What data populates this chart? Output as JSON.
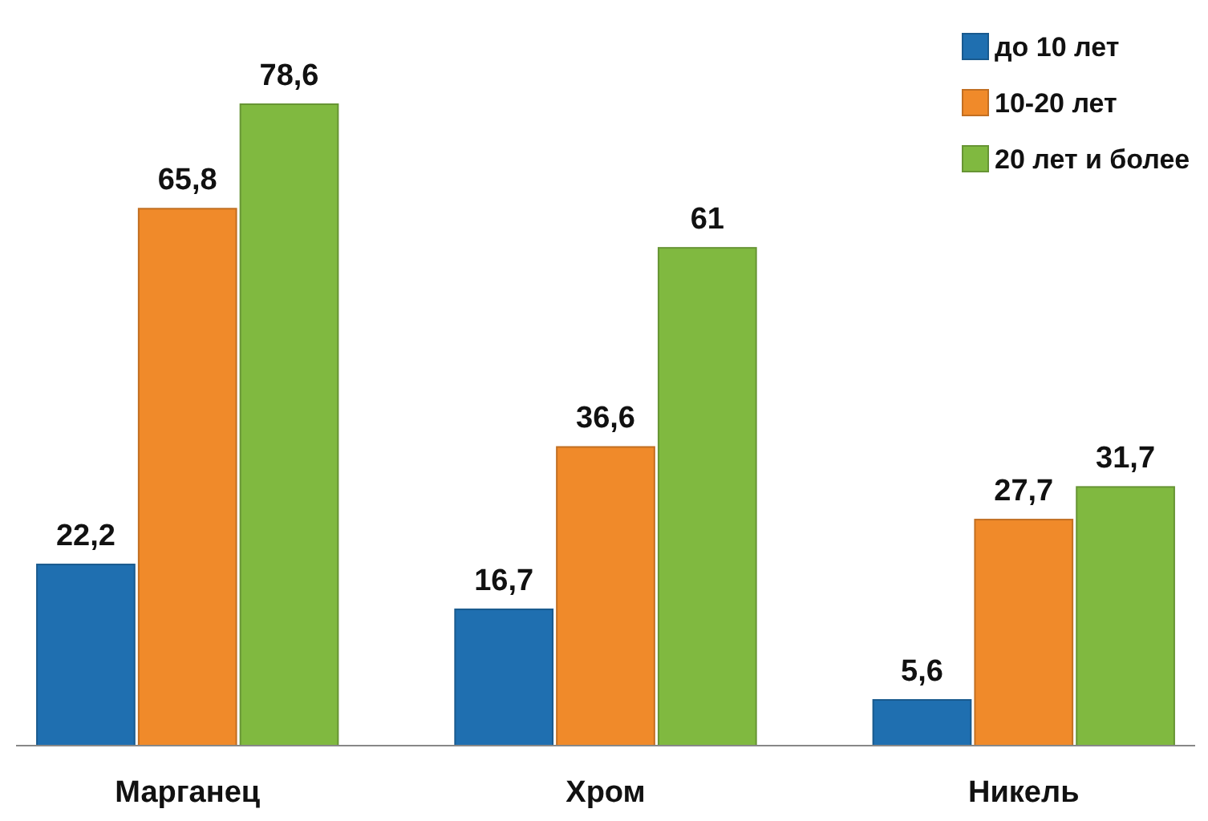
{
  "chart_data": {
    "type": "bar",
    "categories": [
      "Марганец",
      "Хром",
      "Никель"
    ],
    "series": [
      {
        "name": "до 10 лет",
        "color": "#1f6fb0",
        "values": [
          22.2,
          16.7,
          5.6
        ],
        "value_labels": [
          "22,2",
          "16,7",
          "5,6"
        ]
      },
      {
        "name": "10-20 лет",
        "color": "#f08a2a",
        "values": [
          65.8,
          36.6,
          27.7
        ],
        "value_labels": [
          "65,8",
          "36,6",
          "27,7"
        ]
      },
      {
        "name": "20 лет и более",
        "color": "#80b940",
        "values": [
          78.6,
          61,
          31.7
        ],
        "value_labels": [
          "78,6",
          "61",
          "31,7"
        ]
      }
    ],
    "legend": "top right",
    "tick_labels": "x"
  }
}
